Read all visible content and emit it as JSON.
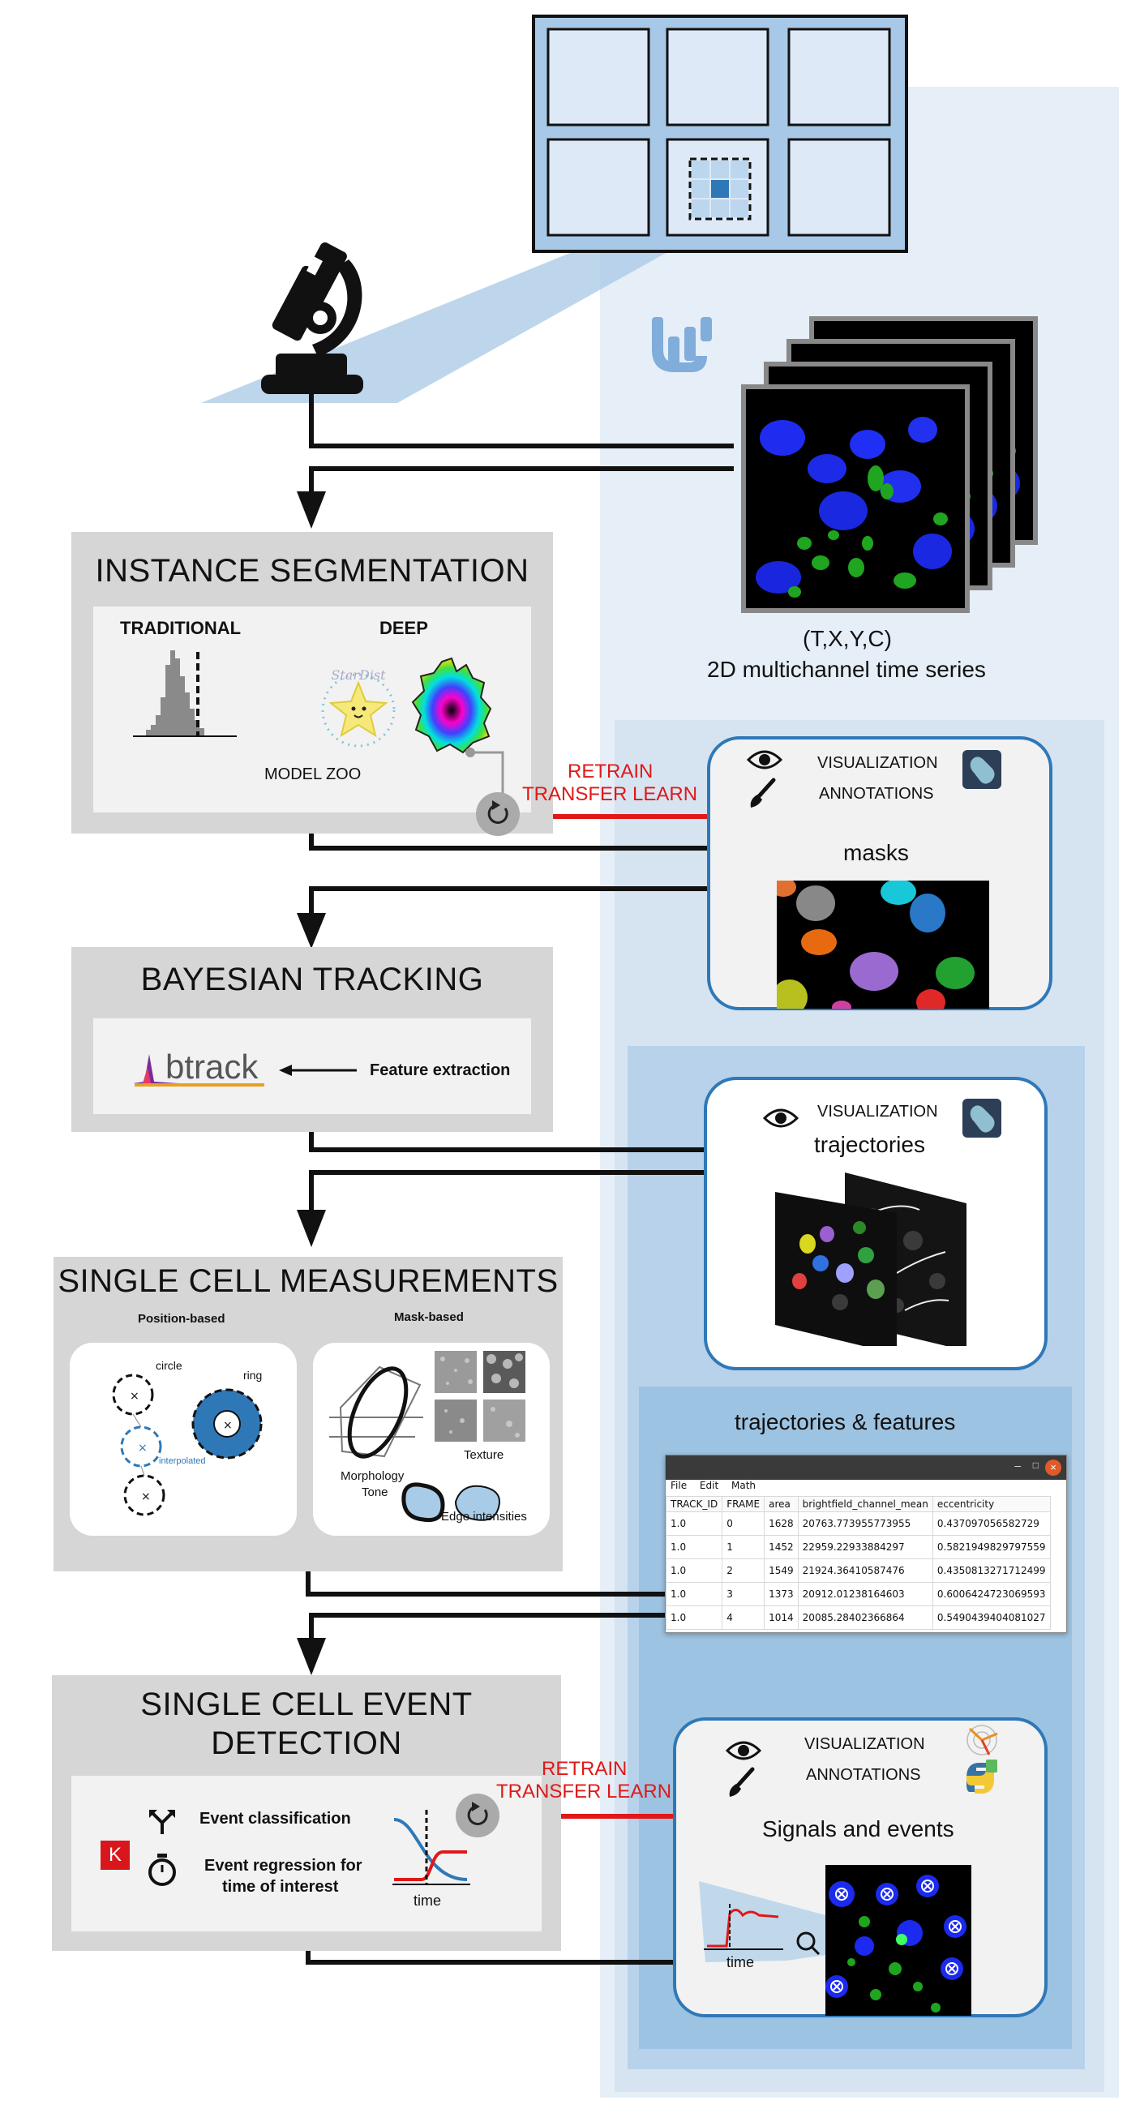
{
  "input": {
    "dims": "(T,X,Y,C)",
    "subtitle": "2D multichannel time series"
  },
  "segmentation": {
    "title": "INSTANCE SEGMENTATION",
    "traditional_label": "TRADITIONAL",
    "deep_label": "DEEP",
    "model_zoo_label": "MODEL ZOO",
    "stardist_logo_text": "StarDist",
    "retrain_line1": "RETRAIN",
    "retrain_line2": "TRANSFER LEARN"
  },
  "masks_panel": {
    "visualization_label": "VISUALIZATION",
    "annotations_label": "ANNOTATIONS",
    "title": "masks"
  },
  "tracking": {
    "title": "BAYESIAN TRACKING",
    "logo_text": "btrack",
    "feature_label": "Feature extraction"
  },
  "trajectories_panel": {
    "visualization_label": "VISUALIZATION",
    "title": "trajectories"
  },
  "measurements": {
    "title": "SINGLE CELL MEASUREMENTS",
    "position_label": "Position-based",
    "mask_label": "Mask-based",
    "circle_label": "circle",
    "ring_label": "ring",
    "interpolated_label": "interpolated",
    "texture_label": "Texture",
    "morphology_label": "Morphology",
    "tone_label": "Tone",
    "edge_label": "Edge intensities"
  },
  "features_section": {
    "title": "trajectories & features",
    "menu": [
      "File",
      "Edit",
      "Math"
    ],
    "columns": [
      "TRACK_ID",
      "FRAME",
      "area",
      "brightfield_channel_mean",
      "eccentricity"
    ],
    "rows": [
      [
        "1.0",
        "0",
        "1628",
        "20763.773955773955",
        "0.437097056582729"
      ],
      [
        "1.0",
        "1",
        "1452",
        "22959.22933884297",
        "0.5821949829797559"
      ],
      [
        "1.0",
        "2",
        "1549",
        "21924.36410587476",
        "0.4350813271712499"
      ],
      [
        "1.0",
        "3",
        "1373",
        "20912.01238164603",
        "0.6006424723069593"
      ],
      [
        "1.0",
        "4",
        "1014",
        "20085.28402366864",
        "0.5490439404081027"
      ]
    ]
  },
  "events": {
    "title_line1": "SINGLE CELL EVENT",
    "title_line2": "DETECTION",
    "classification_label": "Event classification",
    "regression_line1": "Event regression for",
    "regression_line2": "time of interest",
    "time_label": "time",
    "keras_letter": "K",
    "retrain_line1": "RETRAIN",
    "retrain_line2": "TRANSFER LEARN"
  },
  "signals_panel": {
    "visualization_label": "VISUALIZATION",
    "annotations_label": "ANNOTATIONS",
    "title": "Signals and events",
    "time_label": "time"
  },
  "colors": {
    "accent_blue": "#2f78b8",
    "retrain_red": "#e01818",
    "background_blue_light": "#e3ecf6",
    "background_blue_mid": "#b9d3ea",
    "background_blue_deep": "#9ec3e0"
  }
}
